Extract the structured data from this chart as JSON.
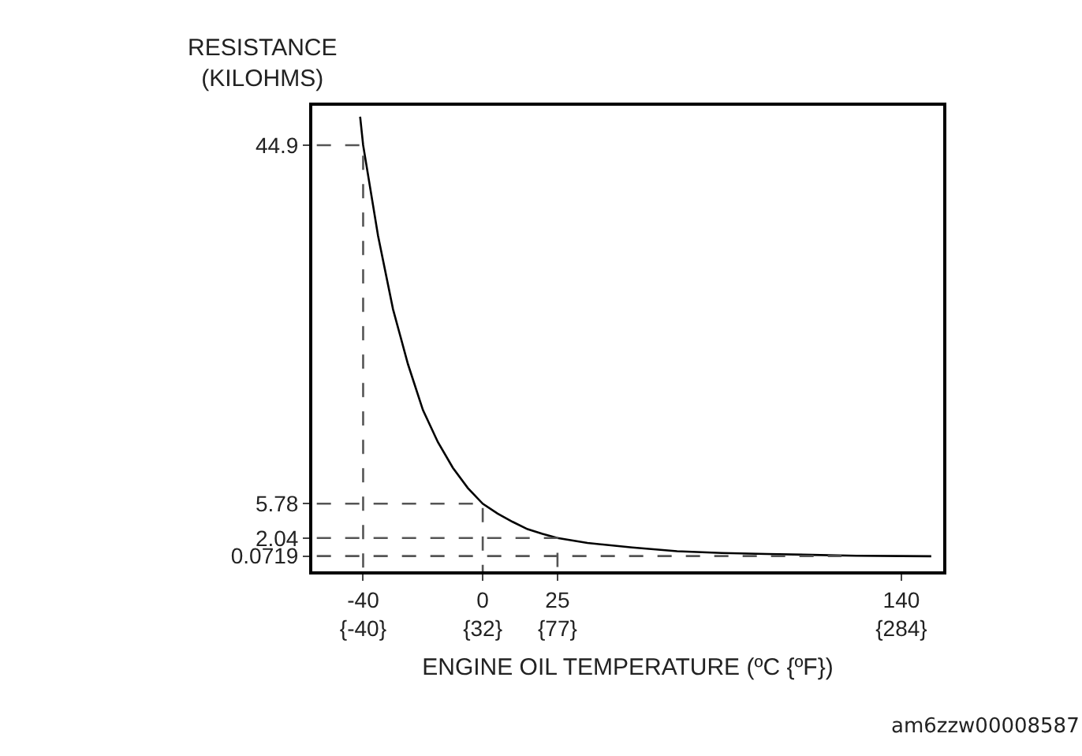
{
  "chart_data": {
    "type": "line",
    "xlabel": "ENGINE OIL TEMPERATURE (ºC {ºF})",
    "ylabel": "RESISTANCE\n(KILOHMS)",
    "xlim": [
      -57,
      154
    ],
    "ylim": [
      -1.6,
      49.2
    ],
    "xticks": [
      -40,
      0,
      25,
      140
    ],
    "x2lim": [
      -70.6,
      309.2
    ],
    "x2ticks": [
      {
        "value": -40,
        "label": "{-40}"
      },
      {
        "value": 32,
        "label": "{32}"
      },
      {
        "value": 77,
        "label": "{77}"
      },
      {
        "value": 284,
        "label": "{284}"
      }
    ],
    "yticks": [
      0.0719,
      2.04,
      5.78,
      44.9
    ],
    "marker": "none",
    "series": [
      {
        "color": "#000000",
        "line_style": "solid",
        "x": [
          -41,
          -40,
          -35,
          -30,
          -25,
          -20,
          -15,
          -10,
          -5,
          0,
          5,
          10,
          15,
          20,
          25,
          35,
          50,
          65,
          80,
          95,
          110,
          125,
          140,
          150
        ],
        "values": [
          48,
          44.9,
          35,
          27,
          21,
          16,
          12.5,
          9.7,
          7.5,
          5.78,
          4.7,
          3.8,
          3.0,
          2.5,
          2.04,
          1.5,
          1.0,
          0.6,
          0.4,
          0.3,
          0.2,
          0.1,
          0.0719,
          0.05
        ]
      },
      {
        "color": "#555555",
        "line_style": "dashed",
        "x": [
          -55.5,
          -40,
          -40
        ],
        "values": [
          44.9,
          44.9,
          -1.6
        ]
      },
      {
        "color": "#555555",
        "line_style": "dashed",
        "x": [
          -55.5,
          0,
          0
        ],
        "values": [
          5.78,
          5.78,
          -1.6
        ]
      },
      {
        "color": "#555555",
        "line_style": "dashed",
        "x": [
          -55.5,
          25,
          25
        ],
        "values": [
          2.04,
          2.04,
          -1.6
        ]
      },
      {
        "color": "#555555",
        "line_style": "dashed",
        "x": [
          -55.5,
          120
        ],
        "values": [
          0.0719,
          0.0719
        ]
      }
    ],
    "annotations": [
      "am6zzw00008587"
    ]
  }
}
